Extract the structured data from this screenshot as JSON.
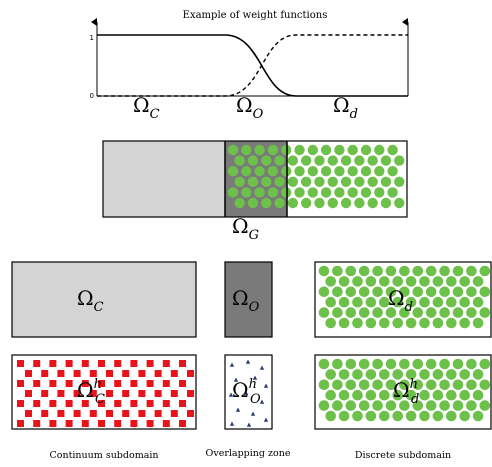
{
  "figure": {
    "title": "Example of weight functions",
    "weight_plot": {
      "y_tick_one": "1",
      "y_tick_zero": "0"
    },
    "region_labels": {
      "continuum": {
        "base": "Ω",
        "sub": "C"
      },
      "overlap": {
        "base": "Ω",
        "sub": "O"
      },
      "discrete": {
        "base": "Ω",
        "sub": "d"
      },
      "gluing": {
        "base": "Ω",
        "sub": "G"
      },
      "continuum_h": {
        "base": "Ω",
        "sub": "C",
        "sup": "h"
      },
      "overlap_h": {
        "base": "Ω",
        "sub": "O",
        "sup": "h"
      },
      "discrete_h": {
        "base": "Ω",
        "sub": "d",
        "sup": "h"
      }
    },
    "captions": {
      "continuum": "Continuum subdomain",
      "overlap": "Overlapping zone",
      "discrete": "Discrete subdomain"
    }
  },
  "colors": {
    "continuum_fill": "#d4d4d4",
    "overlap_fill": "#7a7a7a",
    "particle": "#6dc04a",
    "fe_node": "#e8141b",
    "overlap_node": "#2a3f7a",
    "stroke": "#000000"
  }
}
